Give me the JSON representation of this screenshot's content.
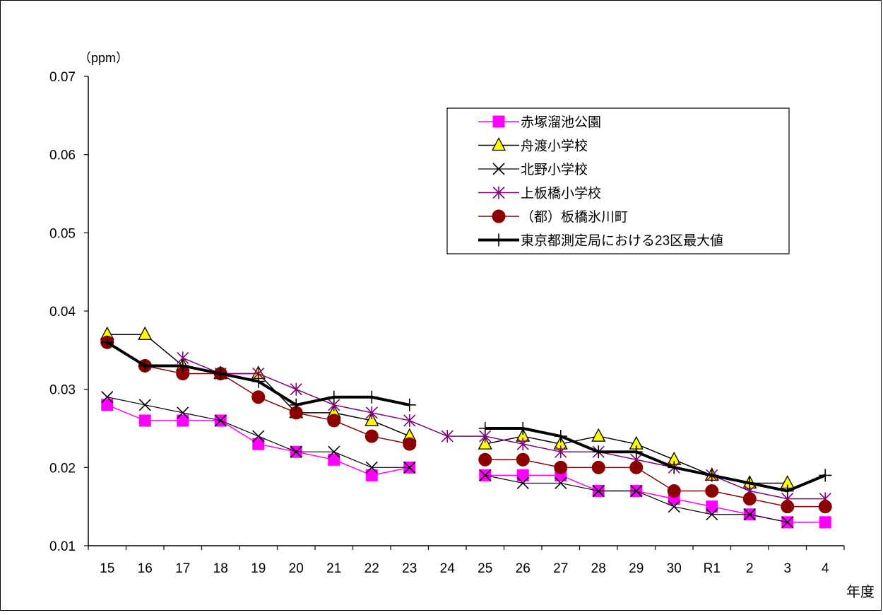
{
  "chart_data": {
    "type": "line",
    "y_unit_label": "（ppm）",
    "x_unit_label": "年度",
    "categories": [
      "15",
      "16",
      "17",
      "18",
      "19",
      "20",
      "21",
      "22",
      "23",
      "24",
      "25",
      "26",
      "27",
      "28",
      "29",
      "30",
      "R1",
      "2",
      "3",
      "4"
    ],
    "ylim": [
      0.01,
      0.07
    ],
    "y_ticks": [
      "0.01",
      "0.02",
      "0.03",
      "0.04",
      "0.05",
      "0.06",
      "0.07"
    ],
    "legend_position": "top-right",
    "series": [
      {
        "name": "赤塚溜池公園",
        "marker": "square",
        "color": "#ff00ff",
        "line_color": "#ff00ff",
        "line_width": 1.5,
        "values": [
          0.028,
          0.026,
          0.026,
          0.026,
          0.023,
          0.022,
          0.021,
          0.019,
          0.02,
          null,
          0.019,
          0.019,
          0.019,
          0.017,
          0.017,
          0.016,
          0.015,
          0.014,
          0.013,
          0.013
        ]
      },
      {
        "name": "舟渡小学校",
        "marker": "triangle",
        "color": "#ffff00",
        "line_color": "#000000",
        "line_width": 1.5,
        "values": [
          0.037,
          0.037,
          0.033,
          0.032,
          0.032,
          0.027,
          0.027,
          0.026,
          0.024,
          null,
          0.023,
          0.024,
          0.023,
          0.024,
          0.023,
          0.021,
          0.019,
          0.018,
          0.018,
          null
        ]
      },
      {
        "name": "北野小学校",
        "marker": "x",
        "color": "#000000",
        "line_color": "#000000",
        "line_width": 1.2,
        "values": [
          0.029,
          0.028,
          0.027,
          0.026,
          0.024,
          0.022,
          0.022,
          0.02,
          0.02,
          null,
          0.019,
          0.018,
          0.018,
          0.017,
          0.017,
          0.015,
          0.014,
          0.014,
          0.013,
          null
        ]
      },
      {
        "name": "上板橋小学校",
        "marker": "asterisk",
        "color": "#800080",
        "line_color": "#800080",
        "line_width": 1.5,
        "values": [
          null,
          null,
          0.034,
          0.032,
          0.032,
          0.03,
          0.028,
          0.027,
          0.026,
          0.024,
          0.024,
          0.023,
          0.022,
          0.022,
          0.021,
          0.02,
          0.019,
          0.017,
          0.016,
          0.016
        ]
      },
      {
        "name": "（都）板橋氷川町",
        "marker": "circle",
        "color": "#8b0000",
        "line_color": "#8b0000",
        "line_width": 1.5,
        "values": [
          0.036,
          0.033,
          0.032,
          0.032,
          0.029,
          0.027,
          0.026,
          0.024,
          0.023,
          null,
          0.021,
          0.021,
          0.02,
          0.02,
          0.02,
          0.017,
          0.017,
          0.016,
          0.015,
          0.015
        ]
      },
      {
        "name": "東京都測定局における23区最大値",
        "marker": "plus",
        "color": "#000000",
        "line_color": "#000000",
        "line_width": 4,
        "values": [
          0.036,
          0.033,
          0.033,
          0.032,
          0.031,
          0.028,
          0.029,
          0.029,
          0.028,
          null,
          0.025,
          0.025,
          0.024,
          0.022,
          0.022,
          0.02,
          0.019,
          0.018,
          0.017,
          0.019
        ]
      }
    ]
  }
}
